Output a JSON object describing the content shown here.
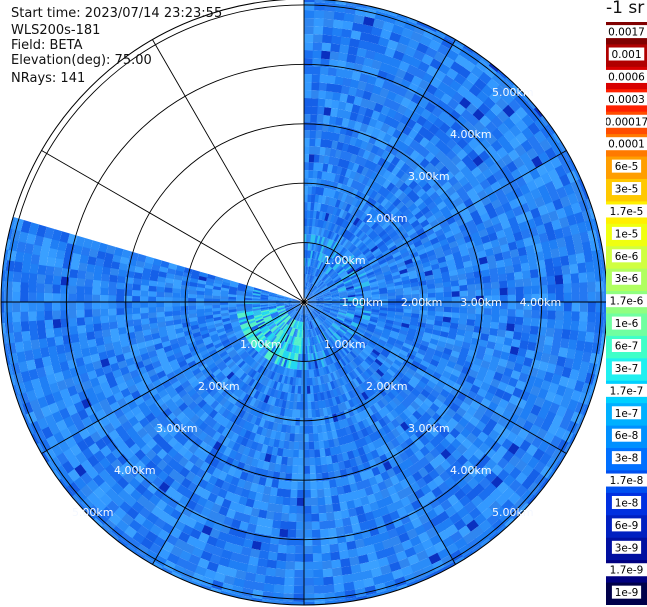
{
  "header": {
    "start_time": "Start time: 2023/07/14 23:23:55",
    "instrument": "WLS200s-181",
    "field": "Field: BETA",
    "elevation": "Elevation(deg): 75.00",
    "nrays": "NRays: 141"
  },
  "chart_data": {
    "type": "heatmap",
    "projection": "polar-ppi",
    "range_ring_labels": [
      "1.00km",
      "2.00km",
      "3.00km",
      "4.00km",
      "5.00km"
    ],
    "range_rings_km": [
      1,
      2,
      3,
      4,
      5
    ],
    "max_range_km": 5.1,
    "spokes_deg": [
      0,
      30,
      60,
      90,
      120,
      150,
      180,
      210,
      240,
      270,
      300,
      330
    ],
    "data_sector_deg": {
      "from": 0,
      "to": 285
    },
    "colorbar": {
      "unit_label": "-1 sr",
      "ticks": [
        "0.0017",
        "0.001",
        "0.0006",
        "0.0003",
        "0.00017",
        "0.0001",
        "6e-5",
        "3e-5",
        "1.7e-5",
        "1e-5",
        "6e-6",
        "3e-6",
        "1.7e-6",
        "1e-6",
        "6e-7",
        "3e-7",
        "1.7e-7",
        "1e-7",
        "6e-8",
        "3e-8",
        "1.7e-8",
        "1e-8",
        "6e-9",
        "3e-9",
        "1.7e-9",
        "1e-9"
      ],
      "colors": [
        "#800000",
        "#b00000",
        "#d80000",
        "#ff2000",
        "#ff4c00",
        "#ff7a00",
        "#ff9e00",
        "#ffc800",
        "#fff000",
        "#f0ff10",
        "#d0ff40",
        "#b0ff60",
        "#90ff80",
        "#70ffa0",
        "#40ffc8",
        "#20f0f0",
        "#00d0ff",
        "#00b0ff",
        "#0090ff",
        "#0070ff",
        "#0050f0",
        "#0030e0",
        "#0020c0",
        "#0010a0",
        "#000080",
        "#00004a"
      ]
    },
    "colors": {
      "background_field": "#1f7ff5",
      "near_field": "#22d8f0"
    }
  }
}
